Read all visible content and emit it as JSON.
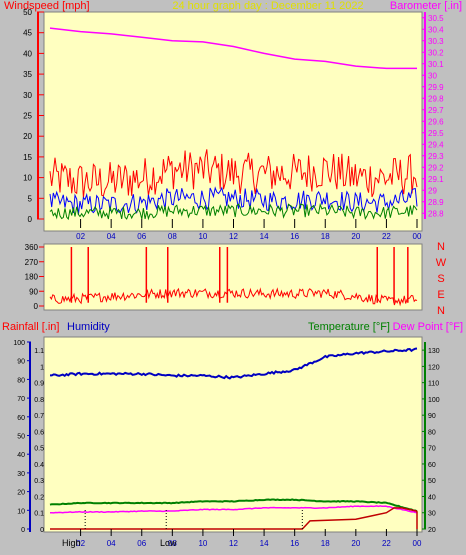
{
  "header": {
    "left": "Windspeed [mph]",
    "center": "24 hour graph day : December 11 2022",
    "right": "Barometer [.in]"
  },
  "direction_letters": [
    "N",
    "W",
    "S",
    "E",
    "N"
  ],
  "bottom_header": {
    "rainfall": "Rainfall [.in]",
    "humidity": "Humidity",
    "temperature": "Temperature [°F]",
    "dewpoint": "Dew Point [°F]"
  },
  "markers": {
    "high": "High",
    "low": "Low"
  },
  "colors": {
    "plot_bg": "#ffffc0",
    "frame": "#c0c0c0",
    "gust": "#ff0000",
    "wind_avg": "#0000ff",
    "wind_low": "#008000",
    "barometer": "#ff00ff",
    "direction": "#ff0000",
    "rain": "#c00000",
    "humidity": "#0000c0",
    "temperature": "#008000",
    "dewpoint": "#ff00ff",
    "hour_labels": "#0000c0",
    "header_center": "#e0e000"
  },
  "chart_data": [
    {
      "type": "line",
      "name": "wind-barometer",
      "x_ticks": [
        "02",
        "04",
        "06",
        "08",
        "10",
        "12",
        "14",
        "16",
        "18",
        "20",
        "22",
        "00"
      ],
      "x_range": [
        0,
        24
      ],
      "y_left": {
        "ticks": [
          0,
          5,
          10,
          15,
          20,
          25,
          30,
          35,
          40,
          45,
          50
        ],
        "range": [
          0,
          50
        ]
      },
      "y_right": {
        "ticks": [
          "28.8",
          "28.9",
          "29",
          "29.1",
          "29.2",
          "29.3",
          "29.4",
          "29.5",
          "29.6",
          "29.7",
          "29.8",
          "29.9",
          "30",
          "30.1",
          "30.2",
          "30.3",
          "30.4",
          "30.5"
        ],
        "range": [
          28.75,
          30.55
        ]
      },
      "series": [
        {
          "name": "Barometer",
          "x": [
            0,
            2,
            4,
            6,
            8,
            10,
            12,
            14,
            16,
            18,
            20,
            22,
            24
          ],
          "y": [
            30.41,
            30.38,
            30.36,
            30.33,
            30.3,
            30.29,
            30.25,
            30.19,
            30.14,
            30.12,
            30.08,
            30.06,
            30.06
          ]
        },
        {
          "name": "Gust",
          "x": [
            0,
            2,
            4,
            6,
            8,
            10,
            12,
            14,
            16,
            18,
            20,
            22,
            24
          ],
          "y": [
            10,
            9,
            9,
            10,
            12,
            12,
            11,
            11,
            11,
            12,
            10,
            10,
            11
          ]
        },
        {
          "name": "Average",
          "x": [
            0,
            2,
            4,
            6,
            8,
            10,
            12,
            14,
            16,
            18,
            20,
            22,
            24
          ],
          "y": [
            4,
            3.5,
            3.5,
            4,
            5,
            5,
            5,
            4.5,
            4.5,
            5,
            4,
            4,
            5
          ]
        },
        {
          "name": "Low",
          "x": [
            0,
            2,
            4,
            6,
            8,
            10,
            12,
            14,
            16,
            18,
            20,
            22,
            24
          ],
          "y": [
            1.5,
            1.5,
            1.5,
            1.5,
            2,
            2,
            2,
            2,
            2,
            2,
            1.5,
            1.5,
            2
          ]
        }
      ]
    },
    {
      "type": "line",
      "name": "wind-direction",
      "x_range": [
        0,
        24
      ],
      "y_ticks": [
        0,
        90,
        180,
        270,
        360
      ],
      "y_range": [
        0,
        360
      ],
      "series": [
        {
          "name": "Direction",
          "x": [
            0,
            2,
            4,
            6,
            8,
            10,
            12,
            14,
            16,
            18,
            20,
            22,
            24
          ],
          "y": [
            40,
            45,
            60,
            70,
            80,
            80,
            80,
            75,
            75,
            80,
            60,
            30,
            40
          ]
        }
      ],
      "spikes": [
        1.4,
        2.5,
        6.3,
        7.7,
        11.1,
        11.6,
        21.4,
        22.5,
        23.4
      ]
    },
    {
      "type": "line",
      "name": "rain-humidity-temperature",
      "x_ticks": [
        "02",
        "04",
        "06",
        "08",
        "10",
        "12",
        "14",
        "16",
        "18",
        "20",
        "22",
        "00"
      ],
      "x_range": [
        0,
        24
      ],
      "y_left_outer": {
        "name": "Humidity",
        "ticks": [
          0,
          10,
          20,
          30,
          40,
          50,
          60,
          70,
          80,
          90,
          100
        ],
        "range": [
          0,
          100
        ]
      },
      "y_left_inner": {
        "name": "Rainfall",
        "ticks": [
          "0",
          "0.1",
          "0.2",
          "0.3",
          "0.4",
          "0.5",
          "0.6",
          "0.7",
          "0.8",
          "0.9",
          "1",
          "1.1"
        ],
        "range": [
          0,
          1.15
        ]
      },
      "y_right": {
        "name": "Temperature",
        "ticks": [
          20,
          30,
          40,
          50,
          60,
          70,
          80,
          90,
          100,
          110,
          120,
          130
        ],
        "range": [
          20,
          135
        ]
      },
      "series": [
        {
          "name": "Humidity",
          "x": [
            0,
            2,
            4,
            6,
            8,
            10,
            12,
            14,
            16,
            18,
            20,
            22,
            24
          ],
          "y": [
            82,
            83,
            83,
            83,
            82,
            82,
            81,
            83,
            85,
            92,
            94,
            95,
            96
          ]
        },
        {
          "name": "Temperature",
          "x": [
            0,
            2,
            4,
            6,
            8,
            10,
            12,
            14,
            16,
            18,
            20,
            22,
            24
          ],
          "y": [
            35,
            36,
            36,
            36,
            36,
            37,
            37,
            38,
            38,
            37,
            37,
            36,
            31
          ]
        },
        {
          "name": "Dew Point",
          "x": [
            0,
            2,
            4,
            6,
            8,
            10,
            12,
            14,
            16,
            18,
            20,
            22,
            24
          ],
          "y": [
            30,
            30.5,
            30.5,
            31,
            31,
            32,
            32,
            33,
            33,
            33,
            34,
            34,
            30
          ]
        },
        {
          "name": "Rainfall",
          "x": [
            0,
            16.5,
            17,
            20,
            21,
            22,
            22.5,
            23,
            24
          ],
          "y": [
            0,
            0,
            0.05,
            0.06,
            0.08,
            0.1,
            0.13,
            0.13,
            0.11
          ]
        }
      ],
      "event_markers": [
        {
          "label": "High",
          "x": 2.3
        },
        {
          "label": "Low",
          "x": 7.6
        },
        {
          "label": "",
          "x": 16.5
        }
      ]
    }
  ]
}
